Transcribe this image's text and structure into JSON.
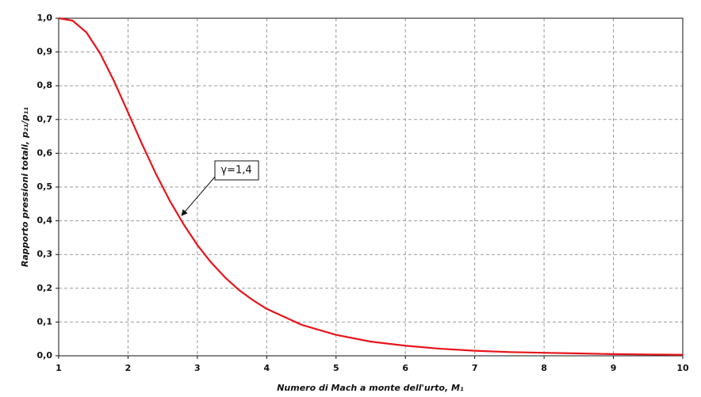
{
  "chart_data": {
    "type": "line",
    "y_label": "Rapporto pressioni totali, p₂₁/p₁₁",
    "x_label": "Numero di Mach a monte dell'urto, M₁",
    "annotation": "γ=1,4",
    "x": [
      1,
      1.2,
      1.4,
      1.6,
      1.8,
      2,
      2.2,
      2.4,
      2.6,
      2.8,
      3,
      3.2,
      3.4,
      3.6,
      3.8,
      4,
      4.5,
      5,
      5.5,
      6,
      6.5,
      7,
      7.5,
      8,
      8.5,
      9,
      9.5,
      10
    ],
    "series": [
      {
        "color": "#e8141b",
        "values": [
          1,
          0.993,
          0.958,
          0.895,
          0.813,
          0.721,
          0.628,
          0.54,
          0.46,
          0.39,
          0.328,
          0.276,
          0.232,
          0.195,
          0.165,
          0.139,
          0.092,
          0.062,
          0.042,
          0.03,
          0.021,
          0.015,
          0.011,
          0.009,
          0.007,
          0.005,
          0.004,
          0.003
        ]
      }
    ],
    "xlim": [
      1,
      10
    ],
    "xticks": [
      1,
      2,
      3,
      4,
      5,
      6,
      7,
      8,
      9,
      10
    ],
    "ylim": [
      0,
      1
    ],
    "yticks": [
      {
        "value": 0,
        "label": "0,0"
      },
      {
        "value": 0.1,
        "label": "0,1"
      },
      {
        "value": 0.2,
        "label": "0,2"
      },
      {
        "value": 0.3,
        "label": "0,3"
      },
      {
        "value": 0.4,
        "label": "0,4"
      },
      {
        "value": 0.5,
        "label": "0,5"
      },
      {
        "value": 0.6,
        "label": "0,6"
      },
      {
        "value": 0.7,
        "label": "0,7"
      },
      {
        "value": 0.8,
        "label": "0,8"
      },
      {
        "value": 0.9,
        "label": "0,9"
      },
      {
        "value": 1,
        "label": "1,0"
      }
    ],
    "grid": true
  }
}
